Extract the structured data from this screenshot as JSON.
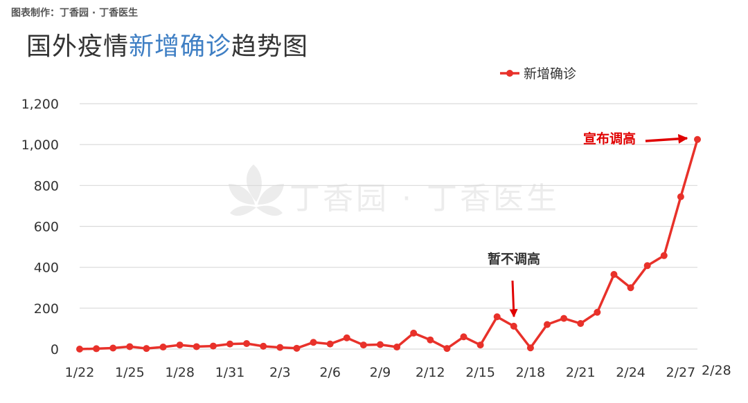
{
  "credit": "图表制作：丁香园 · 丁香医生",
  "title": {
    "part1": "国外疫情",
    "highlight": "新增确诊",
    "part2": "趋势图"
  },
  "watermark": "丁香园 · 丁香医生",
  "colors": {
    "series": "#e8312a",
    "title_highlight": "#3f7fc4",
    "grid": "#d9d9d9",
    "annotation_top": "#e00000",
    "annotation_mid": "#333333",
    "arrow": "#e00000"
  },
  "chart_data": {
    "type": "line",
    "x": [
      "1/22",
      "1/23",
      "1/24",
      "1/25",
      "1/26",
      "1/27",
      "1/28",
      "1/29",
      "1/30",
      "1/31",
      "2/1",
      "2/2",
      "2/3",
      "2/4",
      "2/5",
      "2/6",
      "2/7",
      "2/8",
      "2/9",
      "2/10",
      "2/11",
      "2/12",
      "2/13",
      "2/14",
      "2/15",
      "2/16",
      "2/17",
      "2/18",
      "2/19",
      "2/20",
      "2/21",
      "2/22",
      "2/23",
      "2/24",
      "2/25",
      "2/26",
      "2/27",
      "2/28"
    ],
    "series": [
      {
        "name": "新增确诊",
        "values": [
          0,
          2,
          5,
          12,
          3,
          10,
          20,
          12,
          15,
          25,
          27,
          14,
          8,
          4,
          33,
          25,
          55,
          20,
          22,
          10,
          78,
          45,
          3,
          60,
          20,
          158,
          112,
          6,
          120,
          150,
          125,
          180,
          365,
          300,
          408,
          457,
          745,
          1025
        ]
      }
    ],
    "x_tick_labels": [
      "1/22",
      "1/25",
      "1/28",
      "1/31",
      "2/3",
      "2/6",
      "2/9",
      "2/12",
      "2/15",
      "2/18",
      "2/21",
      "2/24",
      "2/27",
      "2/28"
    ],
    "y_ticks": [
      "0",
      "200",
      "400",
      "600",
      "800",
      "1,000",
      "1,200"
    ],
    "ylim": [
      0,
      1200
    ],
    "grid": true,
    "legend": "top-right",
    "annotations": [
      {
        "text": "暂不调高",
        "x": "2/17"
      },
      {
        "text": "宣布调高",
        "x": "2/28"
      }
    ]
  }
}
